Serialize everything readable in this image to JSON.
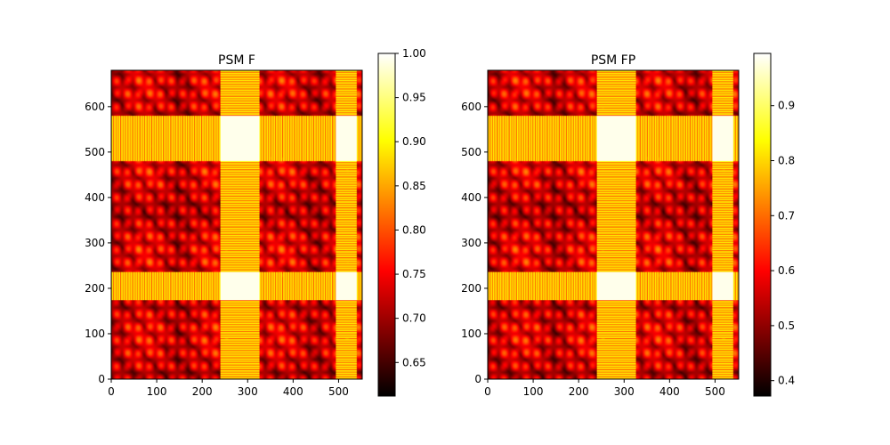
{
  "chart_data": [
    {
      "type": "heatmap",
      "title": "PSM F",
      "xlabel": "",
      "ylabel": "",
      "xlim": [
        0,
        552
      ],
      "ylim": [
        0,
        680
      ],
      "xticks": [
        0,
        100,
        200,
        300,
        400,
        500
      ],
      "yticks": [
        0,
        100,
        200,
        300,
        400,
        500,
        600
      ],
      "colormap": "hot",
      "grid": false,
      "colorbar": {
        "min": 0.612,
        "max": 1.0,
        "ticks": [
          0.65,
          0.7,
          0.75,
          0.8,
          0.85,
          0.9,
          0.95,
          1.0
        ],
        "tick_labels": [
          "0.65",
          "0.70",
          "0.75",
          "0.80",
          "0.85",
          "0.90",
          "0.95",
          "1.00"
        ]
      },
      "blocks": [
        {
          "x": [
            240,
            325
          ],
          "y": [
            480,
            580
          ],
          "value": 0.99
        },
        {
          "x": [
            495,
            540
          ],
          "y": [
            480,
            580
          ],
          "value": 0.99
        },
        {
          "x": [
            240,
            325
          ],
          "y": [
            175,
            235
          ],
          "value": 0.99
        },
        {
          "x": [
            495,
            540
          ],
          "y": [
            175,
            235
          ],
          "value": 0.99
        }
      ]
    },
    {
      "type": "heatmap",
      "title": "PSM FP",
      "xlabel": "",
      "ylabel": "",
      "xlim": [
        0,
        552
      ],
      "ylim": [
        0,
        680
      ],
      "xticks": [
        0,
        100,
        200,
        300,
        400,
        500
      ],
      "yticks": [
        0,
        100,
        200,
        300,
        400,
        500,
        600
      ],
      "colormap": "hot",
      "grid": false,
      "colorbar": {
        "min": 0.372,
        "max": 0.995,
        "ticks": [
          0.4,
          0.5,
          0.6,
          0.7,
          0.8,
          0.9
        ],
        "tick_labels": [
          "0.4",
          "0.5",
          "0.6",
          "0.7",
          "0.8",
          "0.9"
        ]
      },
      "blocks": [
        {
          "x": [
            240,
            325
          ],
          "y": [
            480,
            580
          ],
          "value": 0.99
        },
        {
          "x": [
            495,
            540
          ],
          "y": [
            480,
            580
          ],
          "value": 0.99
        },
        {
          "x": [
            240,
            325
          ],
          "y": [
            175,
            235
          ],
          "value": 0.99
        },
        {
          "x": [
            495,
            540
          ],
          "y": [
            175,
            235
          ],
          "value": 0.99
        }
      ]
    }
  ]
}
